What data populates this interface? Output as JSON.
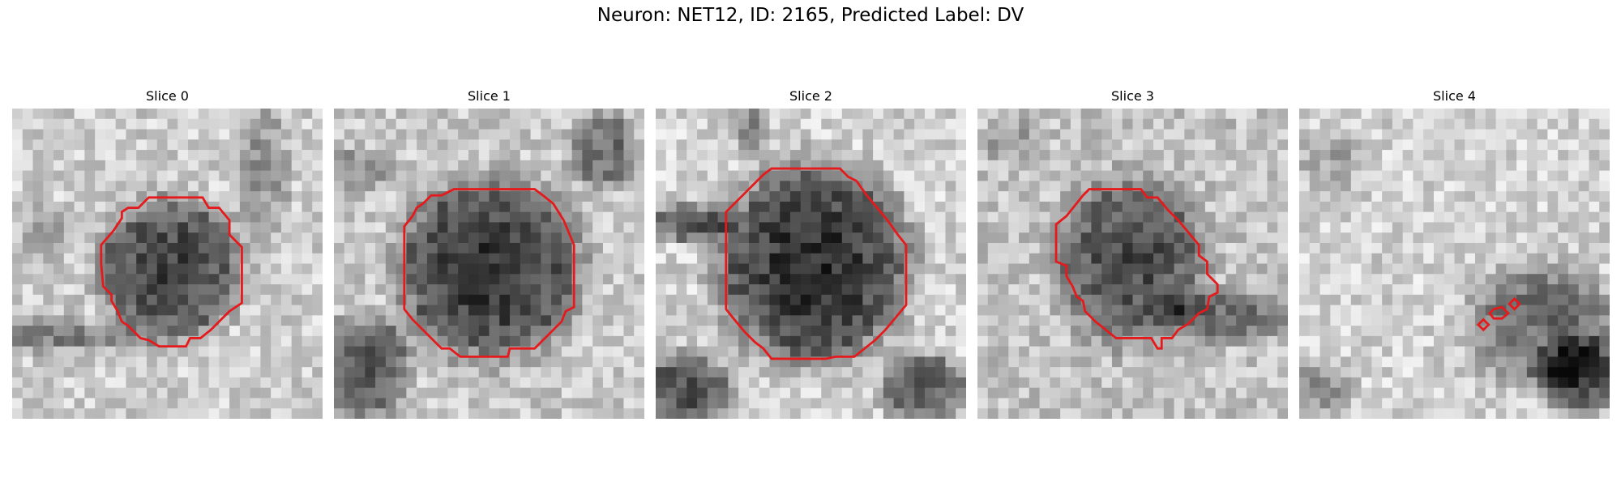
{
  "figure": {
    "title": "Neuron: NET12, ID: 2165, Predicted Label: DV"
  },
  "panels": [
    {
      "title": "Slice 0",
      "contour_color": "#e41a1c"
    },
    {
      "title": "Slice 1",
      "contour_color": "#e41a1c"
    },
    {
      "title": "Slice 2",
      "contour_color": "#e41a1c"
    },
    {
      "title": "Slice 3",
      "contour_color": "#e41a1c"
    },
    {
      "title": "Slice 4",
      "contour_color": "#e41a1c"
    }
  ],
  "colormap": "gray"
}
